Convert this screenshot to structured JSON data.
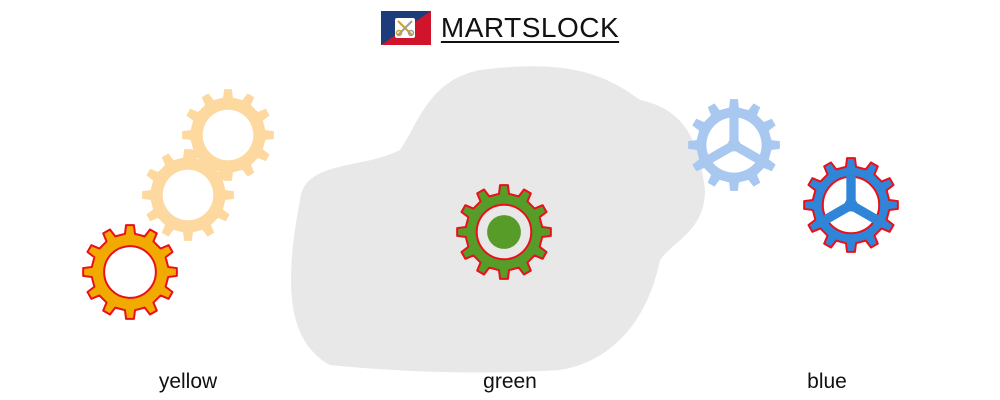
{
  "header": {
    "title": "MARTSLOCK",
    "logo_icon": "flag-with-crossed-keys-icon"
  },
  "colors": {
    "flag_blue": "#1d3d7a",
    "flag_red": "#d0142c",
    "blob": "#e8e8e8",
    "yellow": "#f2a900",
    "yellow_light": "#fdd9a0",
    "green": "#579b28",
    "green_ring": "#e8e8e8",
    "blue": "#2f86d8",
    "blue_light": "#a8c8ef",
    "outline": "#e8101a"
  },
  "groups": [
    {
      "id": "yellow",
      "label": "yellow"
    },
    {
      "id": "green",
      "label": "green"
    },
    {
      "id": "blue",
      "label": "blue"
    }
  ]
}
